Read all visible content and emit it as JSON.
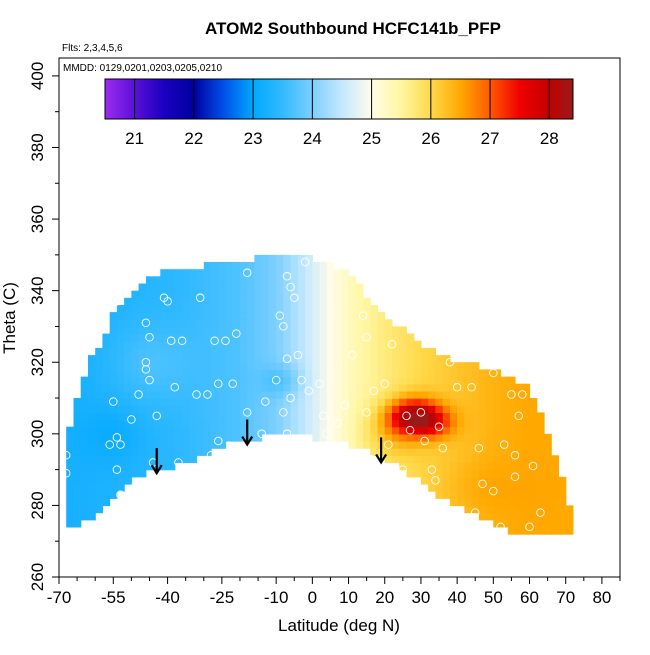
{
  "chart_data": {
    "type": "heatmap",
    "title": "ATOM2 Southbound HCFC141b_PFP",
    "flights_label": "Flts: 2,3,4,5,6",
    "dates_label": "MMDD: 0129,0201,0203,0205,0210",
    "xlabel": "Latitude (deg N)",
    "ylabel": "Theta (C)",
    "xlim": [
      -70,
      85
    ],
    "ylim": [
      260,
      405
    ],
    "x_ticks": [
      -70,
      -55,
      -40,
      -25,
      -10,
      0,
      10,
      20,
      30,
      40,
      50,
      60,
      70,
      80
    ],
    "y_ticks": [
      260,
      280,
      300,
      320,
      340,
      360,
      380,
      400
    ],
    "colorbar": {
      "min": 20.5,
      "max": 28.4,
      "ticks": [
        21,
        22,
        23,
        24,
        25,
        26,
        27,
        28
      ],
      "stops": [
        {
          "v": 20.5,
          "c": "#9d2bf0"
        },
        {
          "v": 21.0,
          "c": "#5a10d8"
        },
        {
          "v": 21.5,
          "c": "#1a00c0"
        },
        {
          "v": 22.0,
          "c": "#0000a0"
        },
        {
          "v": 22.5,
          "c": "#0050e8"
        },
        {
          "v": 23.0,
          "c": "#00a8ff"
        },
        {
          "v": 23.5,
          "c": "#33baff"
        },
        {
          "v": 24.0,
          "c": "#7ccfff"
        },
        {
          "v": 24.5,
          "c": "#c4e8ff"
        },
        {
          "v": 25.0,
          "c": "#fffde8"
        },
        {
          "v": 25.5,
          "c": "#fff6a0"
        },
        {
          "v": 26.0,
          "c": "#ffd94a"
        },
        {
          "v": 26.5,
          "c": "#ffa800"
        },
        {
          "v": 27.0,
          "c": "#ff5a00"
        },
        {
          "v": 27.5,
          "c": "#f00000"
        },
        {
          "v": 28.0,
          "c": "#c20000"
        },
        {
          "v": 28.4,
          "c": "#9a1a1a"
        }
      ]
    },
    "field": {
      "lat_step": 2,
      "theta_step": 2,
      "boundary": [
        {
          "lat": -68,
          "bottom": 274,
          "top": 299
        },
        {
          "lat": -62,
          "bottom": 276,
          "top": 320
        },
        {
          "lat": -58,
          "bottom": 278,
          "top": 325
        },
        {
          "lat": -55,
          "bottom": 283,
          "top": 333
        },
        {
          "lat": -50,
          "bottom": 287,
          "top": 340
        },
        {
          "lat": -45,
          "bottom": 290,
          "top": 344
        },
        {
          "lat": -38,
          "bottom": 291,
          "top": 346
        },
        {
          "lat": -30,
          "bottom": 294,
          "top": 347
        },
        {
          "lat": -22,
          "bottom": 298,
          "top": 348
        },
        {
          "lat": -15,
          "bottom": 299,
          "top": 349
        },
        {
          "lat": -8,
          "bottom": 300,
          "top": 350
        },
        {
          "lat": 0,
          "bottom": 299,
          "top": 349
        },
        {
          "lat": 8,
          "bottom": 298,
          "top": 346
        },
        {
          "lat": 14,
          "bottom": 296,
          "top": 340
        },
        {
          "lat": 20,
          "bottom": 293,
          "top": 333
        },
        {
          "lat": 28,
          "bottom": 288,
          "top": 327
        },
        {
          "lat": 35,
          "bottom": 283,
          "top": 322
        },
        {
          "lat": 42,
          "bottom": 279,
          "top": 320
        },
        {
          "lat": 48,
          "bottom": 276,
          "top": 318
        },
        {
          "lat": 55,
          "bottom": 273,
          "top": 316
        },
        {
          "lat": 60,
          "bottom": 272,
          "top": 313
        },
        {
          "lat": 66,
          "bottom": 272,
          "top": 298
        },
        {
          "lat": 72,
          "bottom": 272,
          "top": 277
        }
      ],
      "base_gradient": [
        {
          "lat": -70,
          "v": 23.2
        },
        {
          "lat": -40,
          "v": 23.4
        },
        {
          "lat": -20,
          "v": 23.7
        },
        {
          "lat": -10,
          "v": 24.0
        },
        {
          "lat": -2,
          "v": 24.5
        },
        {
          "lat": 5,
          "v": 25.0
        },
        {
          "lat": 12,
          "v": 25.4
        },
        {
          "lat": 20,
          "v": 25.7
        },
        {
          "lat": 30,
          "v": 26.0
        },
        {
          "lat": 40,
          "v": 26.2
        },
        {
          "lat": 50,
          "v": 26.4
        },
        {
          "lat": 60,
          "v": 26.5
        },
        {
          "lat": 72,
          "v": 26.5
        }
      ],
      "anomalies": [
        {
          "lat": 28,
          "theta": 305,
          "slat": 5,
          "stheta": 3.5,
          "amp": 2.3
        },
        {
          "lat": 34,
          "theta": 303,
          "slat": 4,
          "stheta": 3,
          "amp": 0.8
        },
        {
          "lat": 22,
          "theta": 300,
          "slat": 6,
          "stheta": 5,
          "amp": 0.5
        },
        {
          "lat": -8,
          "theta": 315,
          "slat": 4,
          "stheta": 3,
          "amp": -0.4
        },
        {
          "lat": -45,
          "theta": 320,
          "slat": 8,
          "stheta": 8,
          "amp": 0.3
        },
        {
          "lat": -55,
          "theta": 300,
          "slat": 6,
          "stheta": 6,
          "amp": -0.2
        },
        {
          "lat": 45,
          "theta": 285,
          "slat": 8,
          "stheta": 6,
          "amp": 0.15
        }
      ]
    },
    "samples": [
      [
        -68,
        289
      ],
      [
        -68,
        294
      ],
      [
        -62,
        325
      ],
      [
        -56,
        297
      ],
      [
        -55,
        309
      ],
      [
        -54,
        299
      ],
      [
        -54,
        290
      ],
      [
        -53,
        283
      ],
      [
        -54,
        337
      ],
      [
        -53,
        297
      ],
      [
        -50,
        304
      ],
      [
        -48,
        311
      ],
      [
        -46,
        318
      ],
      [
        -46,
        331
      ],
      [
        -45,
        315
      ],
      [
        -46,
        320
      ],
      [
        -45,
        327
      ],
      [
        -44,
        292
      ],
      [
        -43,
        305
      ],
      [
        -41,
        338
      ],
      [
        -40,
        337
      ],
      [
        -39,
        326
      ],
      [
        -38,
        313
      ],
      [
        -37,
        292
      ],
      [
        -36,
        326
      ],
      [
        -32,
        311
      ],
      [
        -31,
        338
      ],
      [
        -29,
        311
      ],
      [
        -28,
        294
      ],
      [
        -27,
        326
      ],
      [
        -26,
        314
      ],
      [
        -26,
        298
      ],
      [
        -24,
        326
      ],
      [
        -22,
        314
      ],
      [
        -21,
        328
      ],
      [
        -18,
        306
      ],
      [
        -18,
        345
      ],
      [
        -14,
        300
      ],
      [
        -13,
        309
      ],
      [
        -10,
        315
      ],
      [
        -9,
        333
      ],
      [
        -8,
        330
      ],
      [
        -8,
        306
      ],
      [
        -7,
        321
      ],
      [
        -7,
        300
      ],
      [
        -6,
        310
      ],
      [
        -6,
        341
      ],
      [
        -7,
        344
      ],
      [
        -5,
        338
      ],
      [
        -4,
        322
      ],
      [
        -3,
        315
      ],
      [
        -2,
        348
      ],
      [
        -1,
        312
      ],
      [
        2,
        314
      ],
      [
        3,
        305
      ],
      [
        4,
        300
      ],
      [
        7,
        303
      ],
      [
        9,
        308
      ],
      [
        11,
        322
      ],
      [
        14,
        333
      ],
      [
        15,
        327
      ],
      [
        15,
        306
      ],
      [
        16,
        293
      ],
      [
        17,
        312
      ],
      [
        20,
        314
      ],
      [
        21,
        297
      ],
      [
        22,
        325
      ],
      [
        25,
        290
      ],
      [
        26,
        305
      ],
      [
        27,
        301
      ],
      [
        30,
        306
      ],
      [
        31,
        298
      ],
      [
        33,
        290
      ],
      [
        34,
        287
      ],
      [
        35,
        302
      ],
      [
        36,
        296
      ],
      [
        38,
        320
      ],
      [
        40,
        313
      ],
      [
        42,
        322
      ],
      [
        44,
        313
      ],
      [
        45,
        278
      ],
      [
        46,
        296
      ],
      [
        47,
        286
      ],
      [
        50,
        317
      ],
      [
        50,
        284
      ],
      [
        52,
        274
      ],
      [
        53,
        297
      ],
      [
        55,
        311
      ],
      [
        56,
        288
      ],
      [
        56,
        294
      ],
      [
        57,
        305
      ],
      [
        58,
        311
      ],
      [
        60,
        274
      ],
      [
        61,
        291
      ],
      [
        63,
        278
      ]
    ],
    "arrows": [
      {
        "lat": -43,
        "theta_top": 296,
        "theta_bottom": 289
      },
      {
        "lat": -18,
        "theta_top": 304,
        "theta_bottom": 297
      },
      {
        "lat": 19,
        "theta_top": 299,
        "theta_bottom": 292
      }
    ],
    "colors": {
      "arrow": "#000000",
      "sample_marker": "#ffffff",
      "axis": "#000000"
    }
  }
}
